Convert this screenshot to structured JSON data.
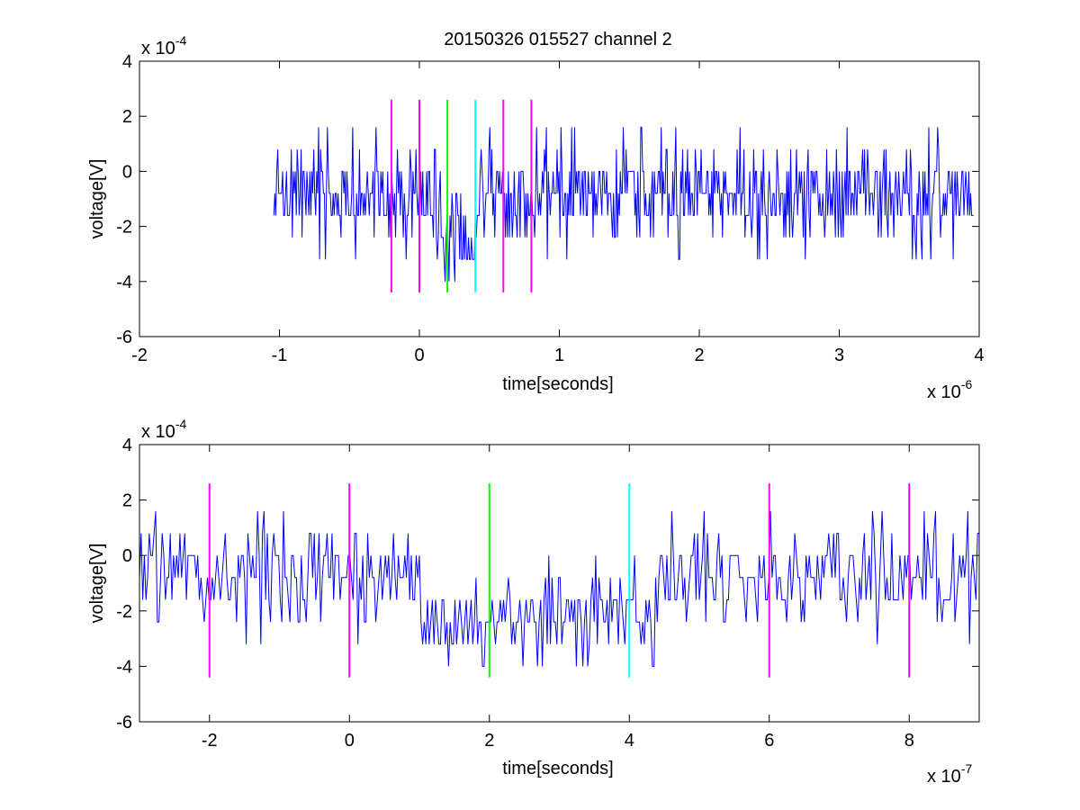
{
  "figure": {
    "title": "20150326 015527 channel 2"
  },
  "colors": {
    "signal": "#0000ff",
    "marker_magenta": "#ff00ff",
    "marker_green": "#00ff00",
    "marker_cyan": "#00ffff",
    "axes": "#000000"
  },
  "chart_data": [
    {
      "type": "line",
      "title": "20150326 015527 channel 2",
      "xlabel": "time[seconds]",
      "ylabel": "voltage[V]",
      "x_exponent_label": "x 10",
      "x_exponent": "-6",
      "y_exponent_label": "x 10",
      "y_exponent": "-4",
      "x_scale": 1e-06,
      "y_scale": 0.0001,
      "xlim": [
        -2,
        4
      ],
      "ylim": [
        -6,
        4
      ],
      "xticks": [
        -2,
        -1,
        0,
        1,
        2,
        3,
        4
      ],
      "yticks": [
        -6,
        -4,
        -2,
        0,
        2,
        4
      ],
      "grid": false,
      "signal": {
        "x_range": [
          -1.04,
          3.96
        ],
        "quantum": 0.8,
        "baseline": -0.8,
        "dips": [
          {
            "from": 0.15,
            "to": 0.42,
            "level": -2.4
          }
        ],
        "peaks_top": 2.4,
        "peaks_bottom": -4.0
      },
      "markers": [
        {
          "x": -0.2,
          "color": "magenta",
          "y_range": [
            -4.4,
            2.6
          ]
        },
        {
          "x": 0.0,
          "color": "magenta",
          "y_range": [
            -4.4,
            2.6
          ]
        },
        {
          "x": 0.2,
          "color": "green",
          "y_range": [
            -4.4,
            2.6
          ]
        },
        {
          "x": 0.4,
          "color": "cyan",
          "y_range": [
            -4.4,
            2.6
          ]
        },
        {
          "x": 0.6,
          "color": "magenta",
          "y_range": [
            -4.4,
            2.6
          ]
        },
        {
          "x": 0.8,
          "color": "magenta",
          "y_range": [
            -4.4,
            2.6
          ]
        }
      ]
    },
    {
      "type": "line",
      "title": "",
      "xlabel": "time[seconds]",
      "ylabel": "voltage[V]",
      "x_exponent_label": "x 10",
      "x_exponent": "-7",
      "y_exponent_label": "x 10",
      "y_exponent": "-4",
      "x_scale": 1e-07,
      "y_scale": 0.0001,
      "xlim": [
        -3,
        9
      ],
      "ylim": [
        -6,
        4
      ],
      "xticks": [
        -2,
        0,
        2,
        4,
        6,
        8
      ],
      "yticks": [
        -6,
        -4,
        -2,
        0,
        2,
        4
      ],
      "grid": false,
      "signal": {
        "x_range": [
          -3,
          9
        ],
        "quantum": 0.8,
        "baseline": -0.8,
        "dips": [
          {
            "from": 1.0,
            "to": 4.4,
            "level": -2.4
          }
        ],
        "peaks_top": 2.4,
        "peaks_bottom": -4.0
      },
      "markers": [
        {
          "x": -2,
          "color": "magenta",
          "y_range": [
            -4.4,
            2.6
          ]
        },
        {
          "x": 0,
          "color": "magenta",
          "y_range": [
            -4.4,
            2.6
          ]
        },
        {
          "x": 2,
          "color": "green",
          "y_range": [
            -4.4,
            2.6
          ]
        },
        {
          "x": 4,
          "color": "cyan",
          "y_range": [
            -4.4,
            2.6
          ]
        },
        {
          "x": 6,
          "color": "magenta",
          "y_range": [
            -4.4,
            2.6
          ]
        },
        {
          "x": 8,
          "color": "magenta",
          "y_range": [
            -4.4,
            2.6
          ]
        }
      ]
    }
  ]
}
